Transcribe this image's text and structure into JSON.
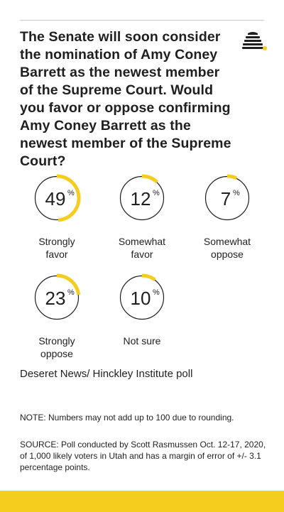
{
  "question": "The Senate will soon consider the nomination of Amy Coney Barrett as the newest member of the Supreme Court. Would you favor or oppose confirming Amy Coney Barrett as the newest member of the Supreme Court?",
  "colors": {
    "accent": "#f5cd1f",
    "ring": "#1f1f1f",
    "text": "#1f1f1f"
  },
  "logo_icon": "beehive-icon",
  "chart_data": {
    "type": "pie",
    "title": "",
    "unit": "%",
    "categories": [
      "Strongly favor",
      "Somewhat favor",
      "Somewhat oppose",
      "Strongly oppose",
      "Not sure"
    ],
    "values": [
      49,
      12,
      7,
      23,
      10
    ],
    "items": [
      {
        "value": 49,
        "value_text": "49",
        "label_lines": [
          "Strongly",
          "favor"
        ]
      },
      {
        "value": 12,
        "value_text": "12",
        "label_lines": [
          "Somewhat",
          "favor"
        ]
      },
      {
        "value": 7,
        "value_text": "7",
        "label_lines": [
          "Somewhat",
          "oppose"
        ]
      },
      {
        "value": 23,
        "value_text": "23",
        "label_lines": [
          "Strongly",
          "oppose"
        ]
      },
      {
        "value": 10,
        "value_text": "10",
        "label_lines": [
          "Not sure"
        ]
      }
    ]
  },
  "source_title": "Deseret News/ Hinckley Institute poll",
  "note": "NOTE: Numbers may not add up to 100 due to rounding.",
  "source": "SOURCE: Poll conducted by Scott Rasmussen Oct. 12-17, 2020, of 1,000 likely voters in Utah and has a margin of error of +/- 3.1 percentage points."
}
